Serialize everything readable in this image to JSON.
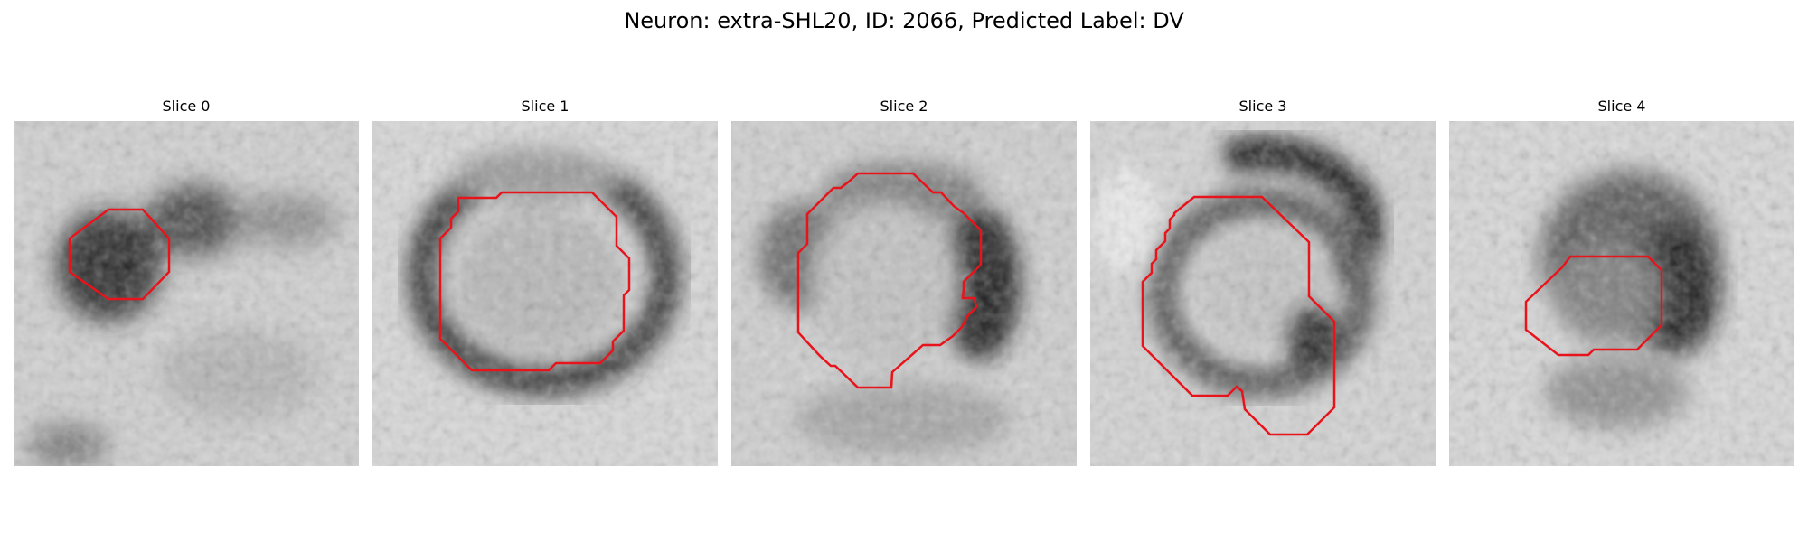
{
  "figure": {
    "title": "Neuron: extra-SHL20, ID: 2066, Predicted Label: DV"
  },
  "colors": {
    "contour": "#e8141c",
    "background": "#ffffff"
  },
  "slices": [
    {
      "title": "Slice 0"
    },
    {
      "title": "Slice 1"
    },
    {
      "title": "Slice 2"
    },
    {
      "title": "Slice 3"
    },
    {
      "title": "Slice 4"
    }
  ]
}
